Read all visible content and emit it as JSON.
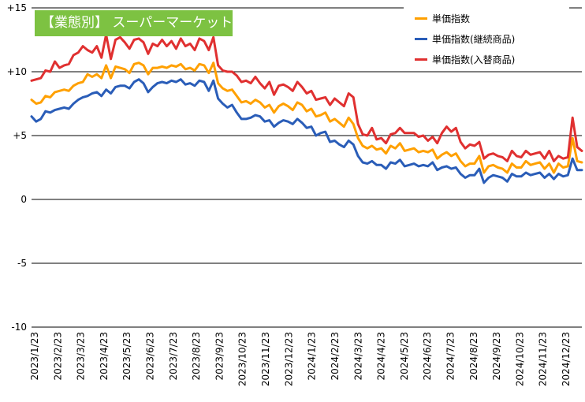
{
  "title": "【業態別】 スーパーマーケット",
  "colors": {
    "title_bg": "#7dc242",
    "grid": "#000000"
  },
  "chart_data": {
    "type": "line",
    "ylim": [
      -10,
      15
    ],
    "yticks": [
      15,
      10,
      5,
      0,
      -5,
      -10
    ],
    "ytick_labels": [
      "+15",
      "+10",
      "+5",
      "0",
      "-5",
      "-10"
    ],
    "x_labels": [
      "2023/1/23",
      "2023/2/23",
      "2023/3/23",
      "2023/4/23",
      "2023/5/23",
      "2023/6/23",
      "2023/7/23",
      "2023/8/23",
      "2023/9/23",
      "2023/10/23",
      "2023/11/23",
      "2023/12/23",
      "2024/1/23",
      "2024/2/23",
      "2024/3/23",
      "2024/4/23",
      "2024/5/23",
      "2024/6/23",
      "2024/7/23",
      "2024/8/23",
      "2024/9/23",
      "2024/10/23",
      "2024/11/23",
      "2024/12/23"
    ],
    "grid": "horizontal",
    "legend_position": "top-right",
    "series": [
      {
        "name": "単価指数",
        "color": "#ffa000",
        "values": [
          7.8,
          7.5,
          7.6,
          8.1,
          8.0,
          8.4,
          8.5,
          8.6,
          8.5,
          8.9,
          9.1,
          9.2,
          9.8,
          9.6,
          9.8,
          9.5,
          10.5,
          9.5,
          10.4,
          10.3,
          10.2,
          9.9,
          10.6,
          10.7,
          10.5,
          9.8,
          10.3,
          10.3,
          10.4,
          10.3,
          10.5,
          10.4,
          10.6,
          10.2,
          10.3,
          10.1,
          10.6,
          10.5,
          9.9,
          10.7,
          9.1,
          8.7,
          8.5,
          8.6,
          8.1,
          7.6,
          7.7,
          7.5,
          7.8,
          7.6,
          7.2,
          7.4,
          6.8,
          7.3,
          7.5,
          7.3,
          7.0,
          7.6,
          7.4,
          6.9,
          7.1,
          6.5,
          6.6,
          6.8,
          6.1,
          6.3,
          6.0,
          5.7,
          6.4,
          5.9,
          4.8,
          4.2,
          4.0,
          4.2,
          3.9,
          4.0,
          3.6,
          4.2,
          4.0,
          4.4,
          3.8,
          3.9,
          4.0,
          3.7,
          3.8,
          3.7,
          3.9,
          3.2,
          3.5,
          3.7,
          3.4,
          3.6,
          3.0,
          2.6,
          2.8,
          2.8,
          3.4,
          2.1,
          2.6,
          2.7,
          2.5,
          2.4,
          2.1,
          2.8,
          2.5,
          2.5,
          3.0,
          2.7,
          2.8,
          2.9,
          2.4,
          2.8,
          2.1,
          2.8,
          2.5,
          2.6,
          4.8,
          3.0,
          2.9
        ]
      },
      {
        "name": "単価指数(継続商品)",
        "color": "#2a5db8",
        "values": [
          6.5,
          6.1,
          6.3,
          6.9,
          6.8,
          7.0,
          7.1,
          7.2,
          7.1,
          7.5,
          7.8,
          8.0,
          8.1,
          8.3,
          8.4,
          8.1,
          8.6,
          8.3,
          8.8,
          8.9,
          8.9,
          8.7,
          9.2,
          9.4,
          9.1,
          8.4,
          8.8,
          9.1,
          9.2,
          9.1,
          9.3,
          9.2,
          9.4,
          9.0,
          9.1,
          8.9,
          9.3,
          9.2,
          8.5,
          9.3,
          7.9,
          7.5,
          7.2,
          7.4,
          6.8,
          6.3,
          6.3,
          6.4,
          6.6,
          6.5,
          6.1,
          6.2,
          5.7,
          6.0,
          6.2,
          6.1,
          5.9,
          6.3,
          6.0,
          5.6,
          5.7,
          5.0,
          5.2,
          5.3,
          4.5,
          4.6,
          4.3,
          4.1,
          4.6,
          4.3,
          3.4,
          2.9,
          2.8,
          3.0,
          2.7,
          2.7,
          2.4,
          2.9,
          2.8,
          3.1,
          2.6,
          2.7,
          2.8,
          2.6,
          2.7,
          2.6,
          2.9,
          2.3,
          2.5,
          2.6,
          2.4,
          2.5,
          2.0,
          1.7,
          1.9,
          1.9,
          2.4,
          1.3,
          1.7,
          1.9,
          1.8,
          1.7,
          1.4,
          2.0,
          1.8,
          1.8,
          2.1,
          1.9,
          2.0,
          2.1,
          1.7,
          2.0,
          1.6,
          2.0,
          1.8,
          1.9,
          3.2,
          2.3,
          2.3
        ]
      },
      {
        "name": "単価指数(入替商品)",
        "color": "#e03030",
        "values": [
          9.3,
          9.4,
          9.5,
          10.1,
          10.0,
          10.8,
          10.3,
          10.5,
          10.6,
          11.3,
          11.5,
          12.0,
          11.7,
          11.5,
          12.0,
          11.1,
          12.9,
          11.0,
          12.5,
          12.7,
          12.3,
          11.8,
          12.5,
          12.6,
          12.3,
          11.4,
          12.2,
          12.0,
          12.5,
          12.0,
          12.4,
          11.8,
          12.6,
          12.0,
          12.2,
          11.7,
          12.6,
          12.4,
          11.7,
          12.7,
          10.5,
          10.1,
          10.0,
          10.0,
          9.7,
          9.2,
          9.3,
          9.1,
          9.6,
          9.1,
          8.7,
          9.2,
          8.2,
          8.9,
          9.0,
          8.8,
          8.5,
          9.2,
          8.8,
          8.3,
          8.5,
          7.8,
          7.9,
          8.0,
          7.4,
          7.9,
          7.6,
          7.3,
          8.3,
          8.0,
          5.9,
          5.1,
          5.0,
          5.6,
          4.7,
          4.8,
          4.4,
          5.1,
          5.2,
          5.6,
          5.2,
          5.2,
          5.2,
          4.9,
          5.0,
          4.6,
          4.9,
          4.4,
          5.2,
          5.7,
          5.3,
          5.6,
          4.5,
          4.0,
          4.3,
          4.2,
          4.5,
          3.2,
          3.5,
          3.6,
          3.4,
          3.3,
          3.0,
          3.8,
          3.4,
          3.3,
          3.8,
          3.5,
          3.6,
          3.7,
          3.2,
          3.8,
          3.0,
          3.4,
          3.2,
          3.3,
          6.4,
          4.1,
          3.8
        ]
      }
    ]
  }
}
